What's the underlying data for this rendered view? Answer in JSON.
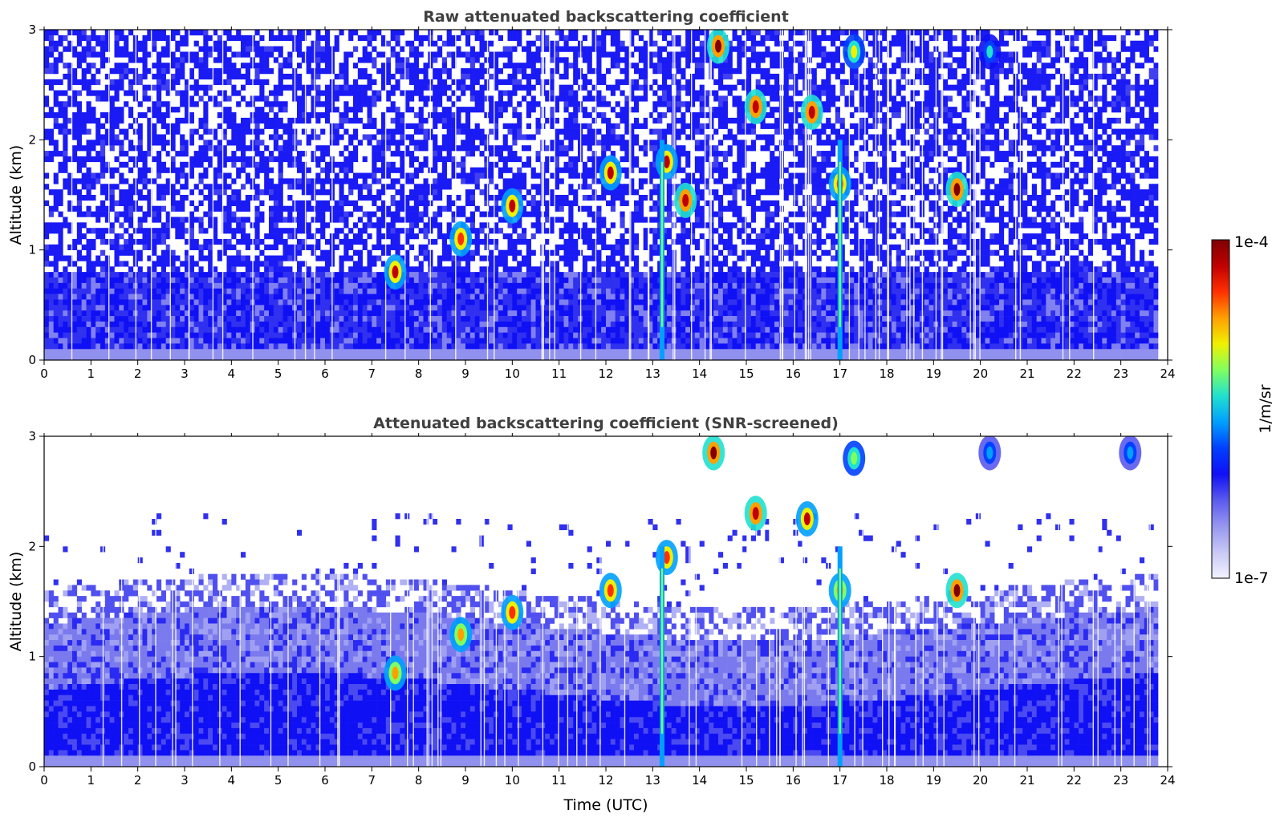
{
  "chart_data": [
    {
      "type": "heatmap",
      "title": "Raw attenuated backscattering coefficient",
      "xlabel": "",
      "ylabel": "Altitude (km)",
      "xlim": [
        0,
        24
      ],
      "ylim": [
        0,
        3
      ],
      "x_ticks": [
        "0",
        "1",
        "2",
        "3",
        "4",
        "5",
        "6",
        "7",
        "8",
        "9",
        "10",
        "11",
        "12",
        "13",
        "14",
        "15",
        "16",
        "17",
        "18",
        "19",
        "20",
        "21",
        "22",
        "23",
        "24"
      ],
      "y_ticks": [
        "0",
        "1",
        "2",
        "3"
      ],
      "background_noise_top_km": 3.0,
      "boundary_layer_top_km": 0.8,
      "features": [
        {
          "t": 7.5,
          "alt": 0.8,
          "level": 0.9
        },
        {
          "t": 8.9,
          "alt": 1.1,
          "level": 0.85
        },
        {
          "t": 10.0,
          "alt": 1.4,
          "level": 0.9
        },
        {
          "t": 12.1,
          "alt": 1.7,
          "level": 0.9
        },
        {
          "t": 13.3,
          "alt": 1.8,
          "level": 0.9
        },
        {
          "t": 13.7,
          "alt": 1.45,
          "level": 0.95
        },
        {
          "t": 14.4,
          "alt": 2.85,
          "level": 1.0
        },
        {
          "t": 15.2,
          "alt": 2.3,
          "level": 0.95
        },
        {
          "t": 16.4,
          "alt": 2.25,
          "level": 0.95
        },
        {
          "t": 17.0,
          "alt": 1.6,
          "level": 0.85
        },
        {
          "t": 17.3,
          "alt": 2.8,
          "level": 0.7
        },
        {
          "t": 19.5,
          "alt": 1.55,
          "level": 1.0
        },
        {
          "t": 20.2,
          "alt": 2.8,
          "level": 0.5
        }
      ]
    },
    {
      "type": "heatmap",
      "title": "Attenuated backscattering coefficient (SNR-screened)",
      "xlabel": "Time (UTC)",
      "ylabel": "Altitude (km)",
      "xlim": [
        0,
        24
      ],
      "ylim": [
        0,
        3
      ],
      "x_ticks": [
        "0",
        "1",
        "2",
        "3",
        "4",
        "5",
        "6",
        "7",
        "8",
        "9",
        "10",
        "11",
        "12",
        "13",
        "14",
        "15",
        "16",
        "17",
        "18",
        "19",
        "20",
        "21",
        "22",
        "23",
        "24"
      ],
      "y_ticks": [
        "0",
        "1",
        "2",
        "3"
      ],
      "screened_top_km": 1.6,
      "features": [
        {
          "t": 7.5,
          "alt": 0.85,
          "level": 0.8
        },
        {
          "t": 8.9,
          "alt": 1.2,
          "level": 0.8
        },
        {
          "t": 10.0,
          "alt": 1.4,
          "level": 0.85
        },
        {
          "t": 12.1,
          "alt": 1.6,
          "level": 0.85
        },
        {
          "t": 13.3,
          "alt": 1.9,
          "level": 0.85
        },
        {
          "t": 14.3,
          "alt": 2.85,
          "level": 1.0
        },
        {
          "t": 15.2,
          "alt": 2.3,
          "level": 0.95
        },
        {
          "t": 16.3,
          "alt": 2.25,
          "level": 0.9
        },
        {
          "t": 17.0,
          "alt": 1.6,
          "level": 0.8
        },
        {
          "t": 17.3,
          "alt": 2.8,
          "level": 0.65
        },
        {
          "t": 19.5,
          "alt": 1.6,
          "level": 1.0
        },
        {
          "t": 20.2,
          "alt": 2.85,
          "level": 0.45
        },
        {
          "t": 23.2,
          "alt": 2.85,
          "level": 0.45
        }
      ]
    }
  ],
  "colorbar": {
    "label": "1/m/sr",
    "max_label": "1e-4",
    "min_label": "1e-7",
    "colors": [
      "#f2f2ff",
      "#c8c8f6",
      "#9696f0",
      "#5a5aee",
      "#1010f5",
      "#0040ff",
      "#00a0ff",
      "#20e0d0",
      "#80ff60",
      "#f0f000",
      "#ffa000",
      "#ff3000",
      "#c00000",
      "#800000"
    ]
  }
}
